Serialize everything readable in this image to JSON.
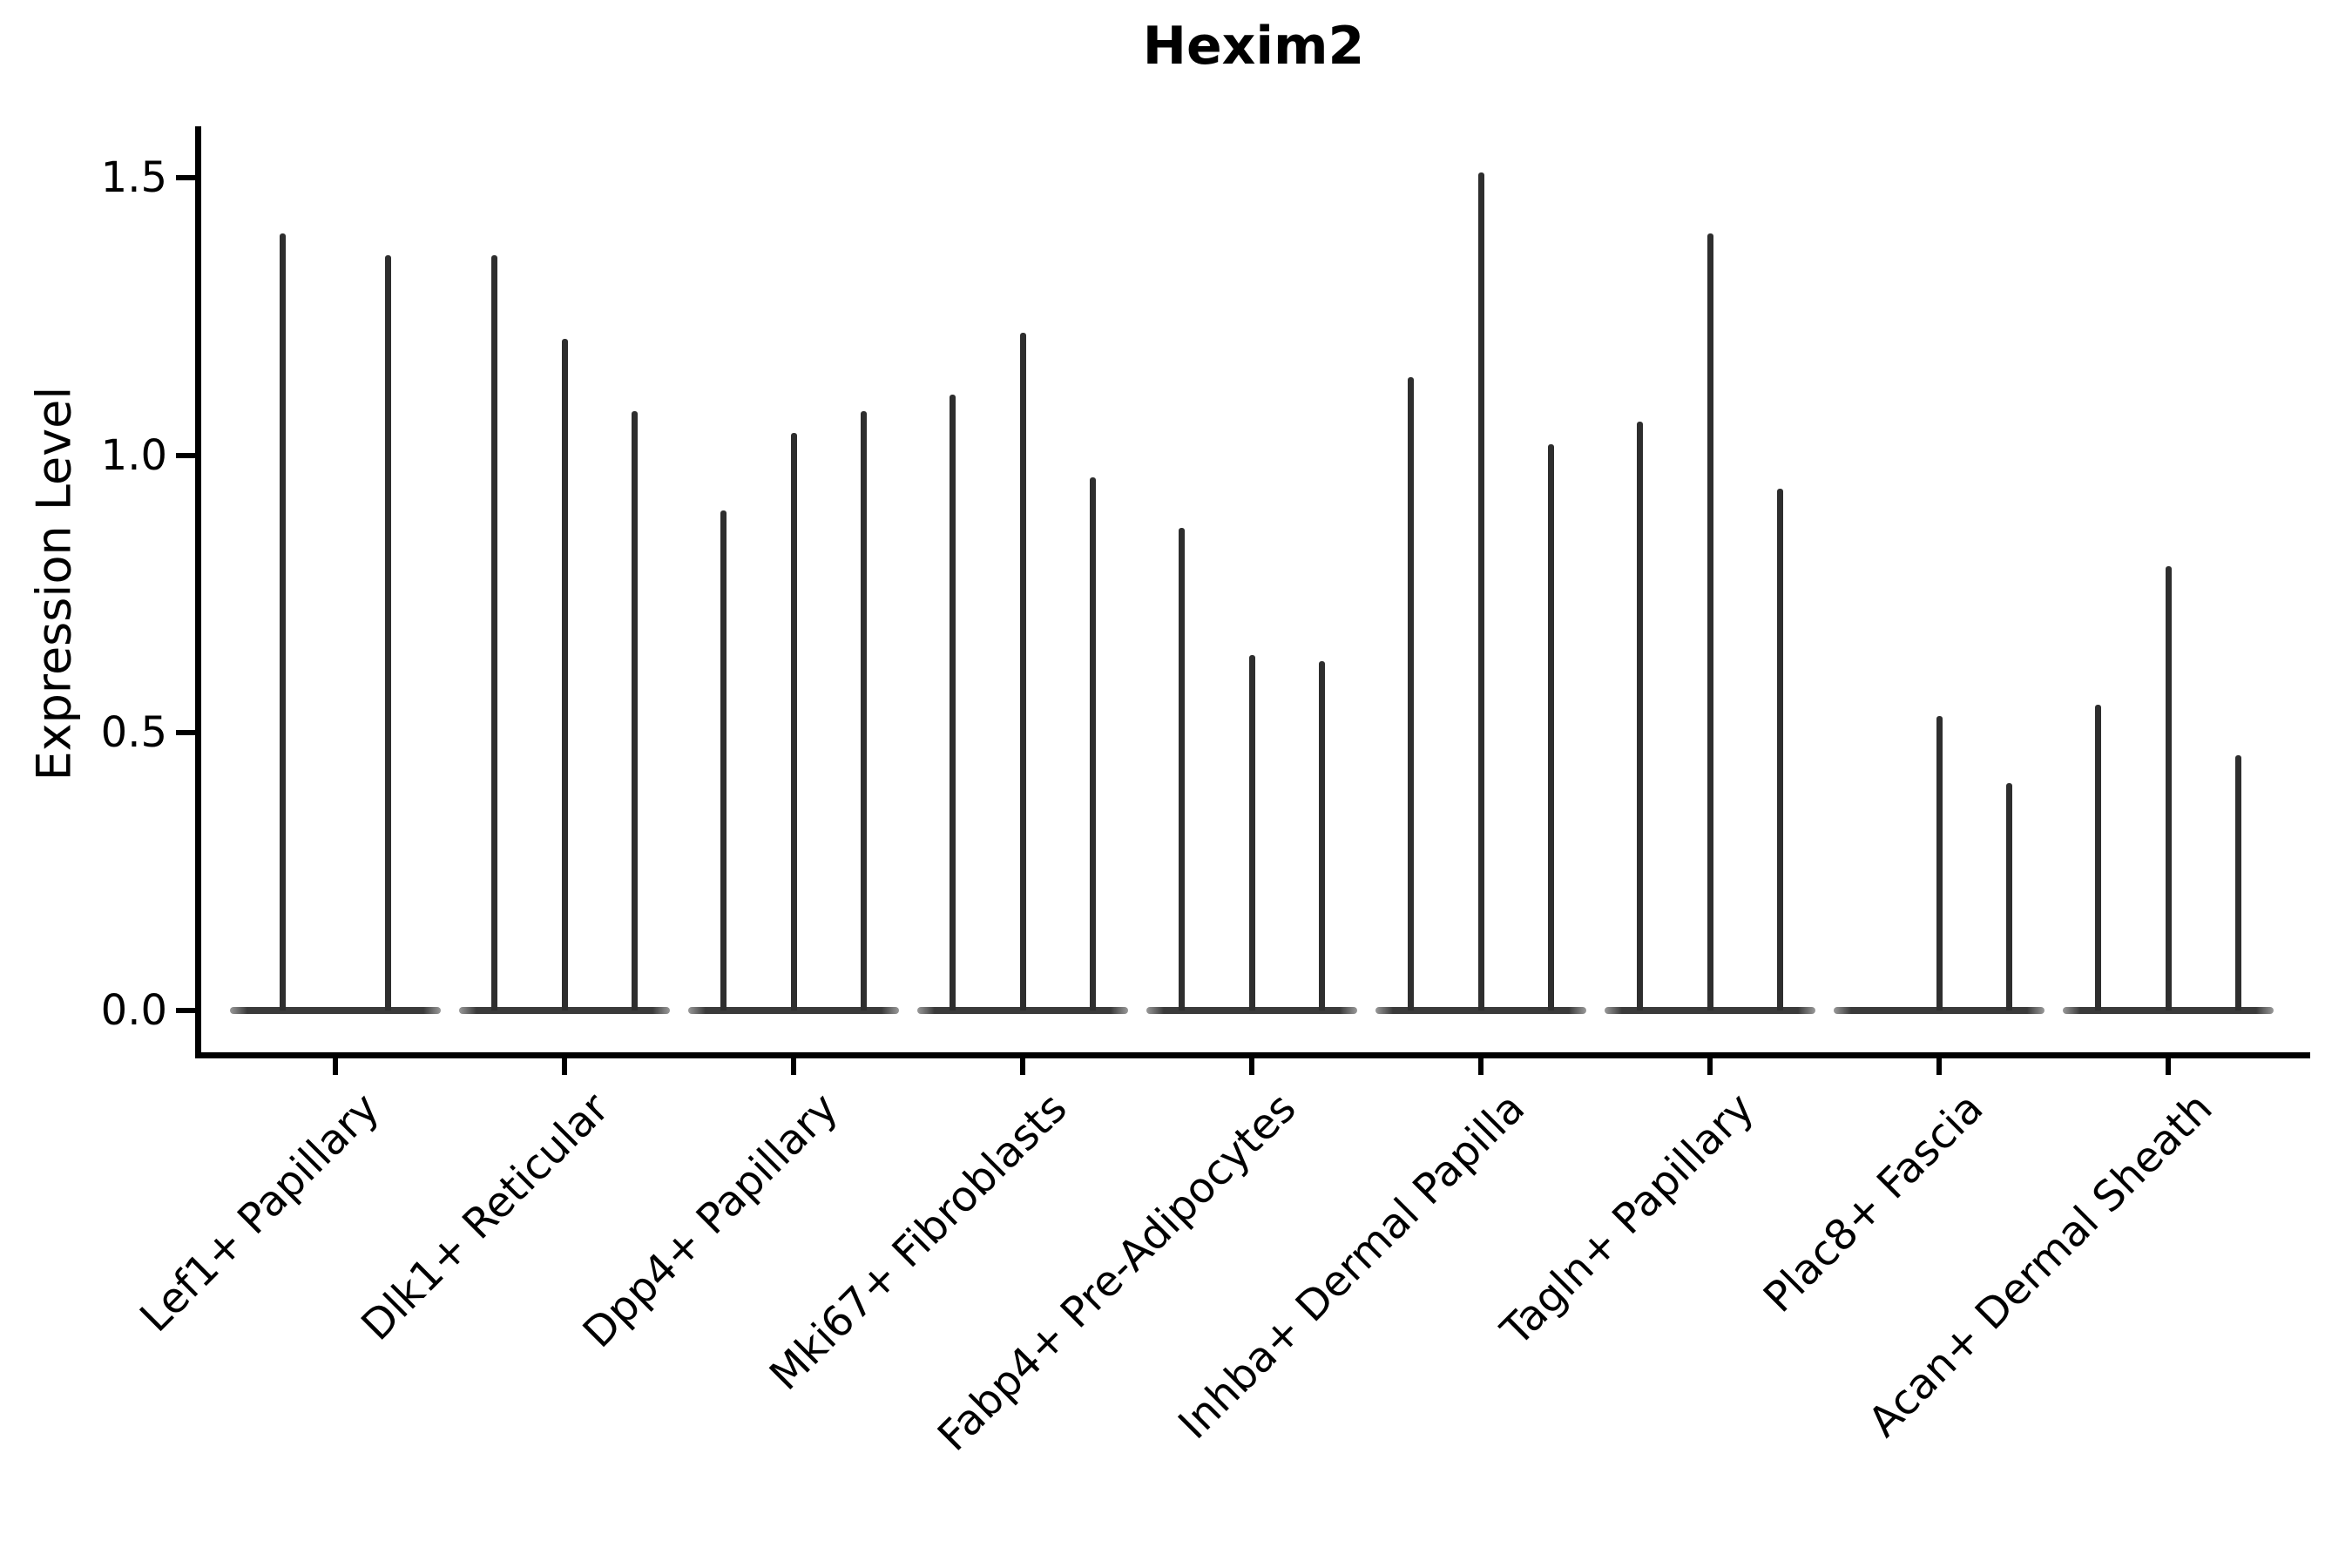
{
  "figure": {
    "title": "Hexim2"
  },
  "axes": {
    "ylabel": "Expression Level",
    "ytick_labels": [
      "0.0",
      "0.5",
      "1.0",
      "1.5"
    ]
  },
  "colors": {
    "ink": "#2e2e2e",
    "axis": "#000000",
    "background": "#ffffff"
  },
  "chart_data": {
    "type": "violin",
    "title": "Hexim2",
    "xlabel": "",
    "ylabel": "Expression Level",
    "ylim": [
      -0.08,
      1.59
    ],
    "yticks": [
      0.0,
      0.5,
      1.0,
      1.5
    ],
    "grid": false,
    "legend": false,
    "orientation": "vertical",
    "note": "Each category shows 2-3 extremely narrow spike-like violins side by side on a flat baseline at 0; peaks list the maximum expression height of each violin in order left to right (0 = flat violin with no spike).",
    "categories": [
      "Lef1+ Papillary",
      "Dlk1+ Reticular",
      "Dpp4+ Papillary",
      "Mki67+ Fibroblasts",
      "Fabp4+ Pre-Adipocytes",
      "Inhba+ Dermal Papilla",
      "Tagln+ Papillary",
      "Plac8+ Fascia",
      "Acan+ Dermal Sheath"
    ],
    "violins": [
      {
        "category": "Lef1+ Papillary",
        "peaks": [
          1.4,
          1.36
        ]
      },
      {
        "category": "Dlk1+ Reticular",
        "peaks": [
          1.36,
          1.21,
          1.08
        ]
      },
      {
        "category": "Dpp4+ Papillary",
        "peaks": [
          0.9,
          1.04,
          1.08
        ]
      },
      {
        "category": "Mki67+ Fibroblasts",
        "peaks": [
          1.11,
          1.22,
          0.96
        ]
      },
      {
        "category": "Fabp4+ Pre-Adipocytes",
        "peaks": [
          0.87,
          0.64,
          0.63
        ]
      },
      {
        "category": "Inhba+ Dermal Papilla",
        "peaks": [
          1.14,
          1.51,
          1.02
        ]
      },
      {
        "category": "Tagln+ Papillary",
        "peaks": [
          1.06,
          1.4,
          0.94
        ]
      },
      {
        "category": "Plac8+ Fascia",
        "peaks": [
          0.0,
          0.53,
          0.41
        ]
      },
      {
        "category": "Acan+ Dermal Sheath",
        "peaks": [
          0.55,
          0.8,
          0.46
        ]
      }
    ]
  }
}
